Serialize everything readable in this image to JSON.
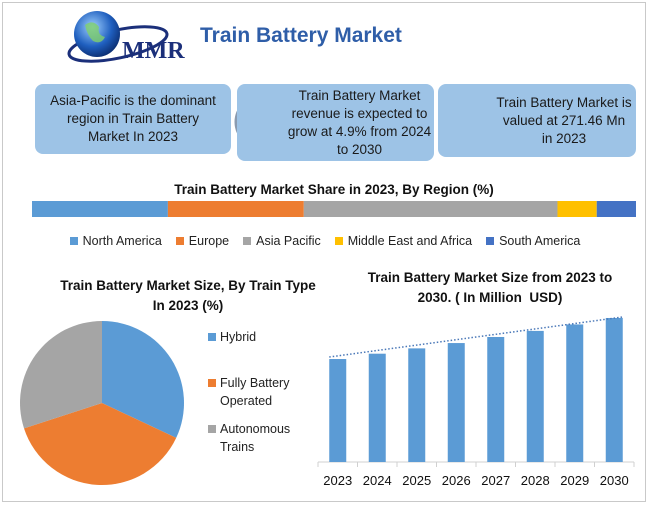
{
  "header": {
    "logo": "MMR",
    "title": "Train Battery Market"
  },
  "info_boxes": [
    "Asia-Pacific is the dominant region in Train Battery Market In 2023",
    "Train Battery Market revenue is expected to grow at 4.9% from 2024 to 2030",
    "Train Battery Market is valued at 271.46 Mn in 2023"
  ],
  "chart_data": [
    {
      "type": "stacked-bar",
      "title": "Train Battery Market Share in 2023, By Region (%)",
      "xlim": [
        0,
        100
      ],
      "series": [
        {
          "name": "North America",
          "color": "#5b9bd5",
          "values": [
            22.5
          ]
        },
        {
          "name": "Europe",
          "color": "#ed7d31",
          "values": [
            22.5
          ]
        },
        {
          "name": "Asia Pacific",
          "color": "#a5a5a5",
          "values": [
            42
          ]
        },
        {
          "name": "Middle East and Africa",
          "color": "#ffc000",
          "values": [
            6.5
          ]
        },
        {
          "name": "South America",
          "color": "#4472c4",
          "values": [
            6.5
          ]
        }
      ]
    },
    {
      "type": "pie",
      "title": "Train Battery Market Size, By Train Type In 2023 (%)",
      "categories": [
        "Hybrid",
        "Fully Battery Operated",
        "Autonomous Trains"
      ],
      "values": [
        32,
        38,
        30
      ],
      "colors": [
        "#5b9bd5",
        "#ed7d31",
        "#a5a5a5"
      ]
    },
    {
      "type": "bar",
      "title": "Train Battery Market Size from 2023 to 2030. ( In Million  USD)",
      "categories": [
        "2023",
        "2024",
        "2025",
        "2026",
        "2027",
        "2028",
        "2029",
        "2030"
      ],
      "values": [
        271,
        285,
        299,
        313,
        329,
        345,
        362,
        379
      ],
      "color": "#5b9bd5",
      "ylim": [
        0,
        400
      ],
      "trendline": true
    }
  ]
}
